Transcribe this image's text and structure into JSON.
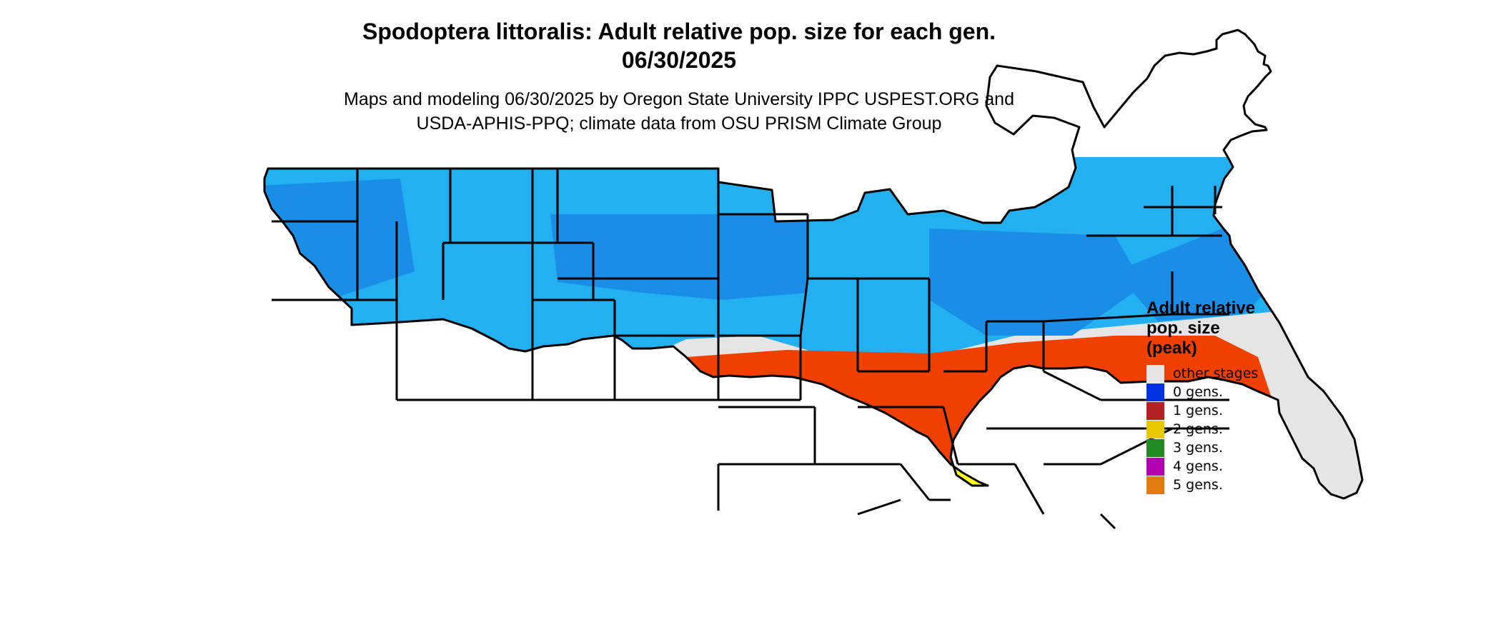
{
  "title": {
    "line1": "Spodoptera littoralis: Adult relative pop. size for each gen.",
    "line2": "06/30/2025"
  },
  "subtitle": {
    "line1": "Maps and modeling 06/30/2025 by Oregon State University IPPC USPEST.ORG and",
    "line2": "USDA-APHIS-PPQ; climate data from OSU PRISM Climate Group"
  },
  "legend": {
    "title_line1": "Adult relative",
    "title_line2": "pop. size",
    "title_line3": "(peak)",
    "items": [
      {
        "label": "other stages",
        "color": "#e5e5e5"
      },
      {
        "label": "0 gens.",
        "color": "#0033dd"
      },
      {
        "label": "1 gens.",
        "color": "#b22222"
      },
      {
        "label": "2 gens.",
        "color": "#e6c700"
      },
      {
        "label": "3 gens.",
        "color": "#228b22"
      },
      {
        "label": "4 gens.",
        "color": "#b000b0"
      },
      {
        "label": "5 gens.",
        "color": "#e07b10"
      }
    ]
  },
  "map_colors": {
    "background": "#e5e5e5",
    "zero_gens_light": "#22b0f0",
    "zero_gens_mid": "#1a8ee6",
    "one_gen": "#f04000",
    "two_gens": "#ffff22",
    "three_gens": "#9be88f",
    "four_gens": "#ff22ff",
    "border": "#000000"
  }
}
